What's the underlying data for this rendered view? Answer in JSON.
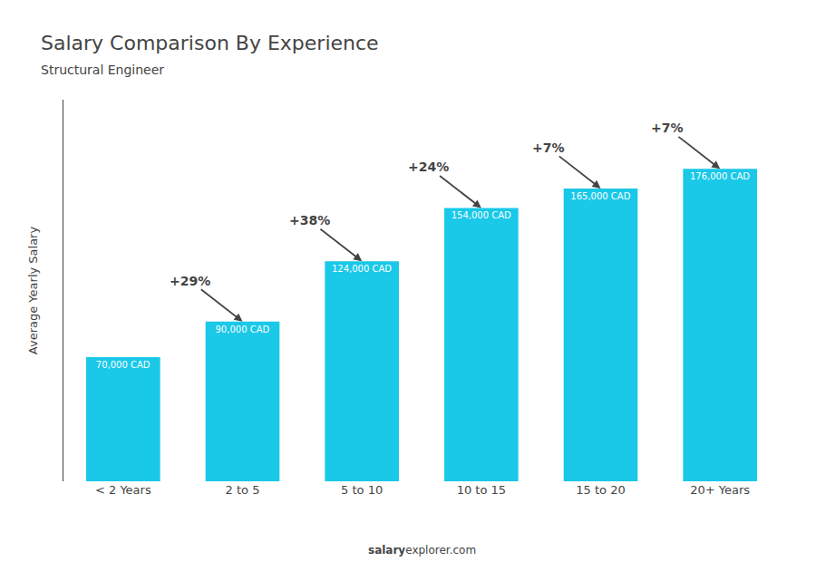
{
  "chart_data": {
    "type": "bar",
    "title": "Salary Comparison By Experience",
    "subtitle": "Structural Engineer",
    "ylabel": "Average Yearly Salary",
    "categories": [
      "< 2 Years",
      "2 to 5",
      "5 to 10",
      "10 to 15",
      "15 to 20",
      "20+ Years"
    ],
    "values": [
      70000,
      90000,
      124000,
      154000,
      165000,
      176000
    ],
    "value_labels": [
      "70,000 CAD",
      "90,000 CAD",
      "124,000 CAD",
      "154,000 CAD",
      "165,000 CAD",
      "176,000 CAD"
    ],
    "data_labels": true,
    "annotations": [
      "+29%",
      "+38%",
      "+24%",
      "+7%",
      "+7%"
    ],
    "watermark": [
      "salary",
      "explorer.com"
    ],
    "color": "#1ac8e8",
    "ylim": [
      0,
      215000
    ],
    "yticks": [],
    "tick_labels": "x",
    "grid": false
  }
}
